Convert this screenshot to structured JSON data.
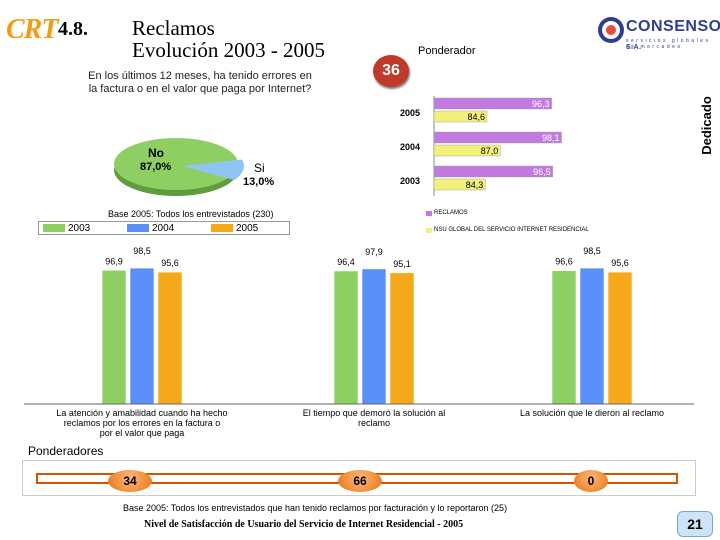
{
  "header": {
    "logo": "CRT",
    "section_number": "4.8.",
    "title": "Reclamos",
    "subtitle": "Evolución 2003 - 2005",
    "brand_name": "CONSENSO",
    "brand_suffix": "S.A.",
    "brand_tagline": "servicios globales de mercadeo"
  },
  "question": "En los últimos 12 meses, ha tenido errores en la factura o en el valor que paga por Internet?",
  "ponderador_badge": "36",
  "ponderador_label": "Ponderador",
  "dedicado_label": "Dedicado",
  "base_2005_all": "Base 2005: Todos los entrevistados (230)",
  "base_2005_claims": "Base 2005: Todos los entrevistados que han tenido reclamos por facturación y lo reportaron (25)",
  "footer": "Nivel de Satisfacción de Usuario del Servicio de Internet Residencial - 2005",
  "page_number": "21",
  "ponderadores": {
    "label": "Ponderadores",
    "values": [
      "34",
      "66",
      "0"
    ]
  },
  "colors": {
    "y2003": "#8dcf63",
    "y2004": "#5b8ff9",
    "y2005": "#f5a81a",
    "reclamos": "#c27ae0",
    "nsu": "#f0f07a",
    "pie_no": "#8dcf63",
    "pie_si": "#8ec5f5",
    "accent_red": "#c0392b"
  },
  "chart_data": [
    {
      "type": "pie",
      "categories": [
        "No",
        "Si"
      ],
      "values": [
        87.0,
        13.0
      ],
      "labels": [
        "87,0%",
        "13,0%"
      ],
      "title": "En los últimos 12 meses, ha tenido errores en la factura o en el valor que paga por Internet?"
    },
    {
      "type": "bar",
      "orientation": "horizontal",
      "categories": [
        "2005",
        "2004",
        "2003"
      ],
      "series": [
        {
          "name": "RECLAMOS",
          "values": [
            96.3,
            98.1,
            96.5
          ],
          "labels": [
            "96,3",
            "98,1",
            "96,5"
          ]
        },
        {
          "name": "NSU GLOBAL DEL SERVICIO INTERNET RESIDENCIAL",
          "values": [
            84.6,
            87.0,
            84.3
          ],
          "labels": [
            "84,6",
            "87,0",
            "84,3"
          ]
        }
      ]
    },
    {
      "type": "bar",
      "categories": [
        "La atención y amabilidad cuando ha hecho reclamos por los errores en la factura o por el valor que paga",
        "El tiempo que demoró la solución al reclamo",
        "La solución que le dieron al reclamo"
      ],
      "series": [
        {
          "name": "2003",
          "values": [
            96.9,
            96.4,
            96.6
          ],
          "labels": [
            "96,9",
            "96,4",
            "96,6"
          ]
        },
        {
          "name": "2004",
          "values": [
            98.5,
            97.9,
            98.5
          ],
          "labels": [
            "98,5",
            "97,9",
            "98,5"
          ]
        },
        {
          "name": "2005",
          "values": [
            95.6,
            95.1,
            95.6
          ],
          "labels": [
            "95,6",
            "95,1",
            "95,6"
          ]
        }
      ],
      "ylim": [
        0,
        100
      ]
    }
  ]
}
